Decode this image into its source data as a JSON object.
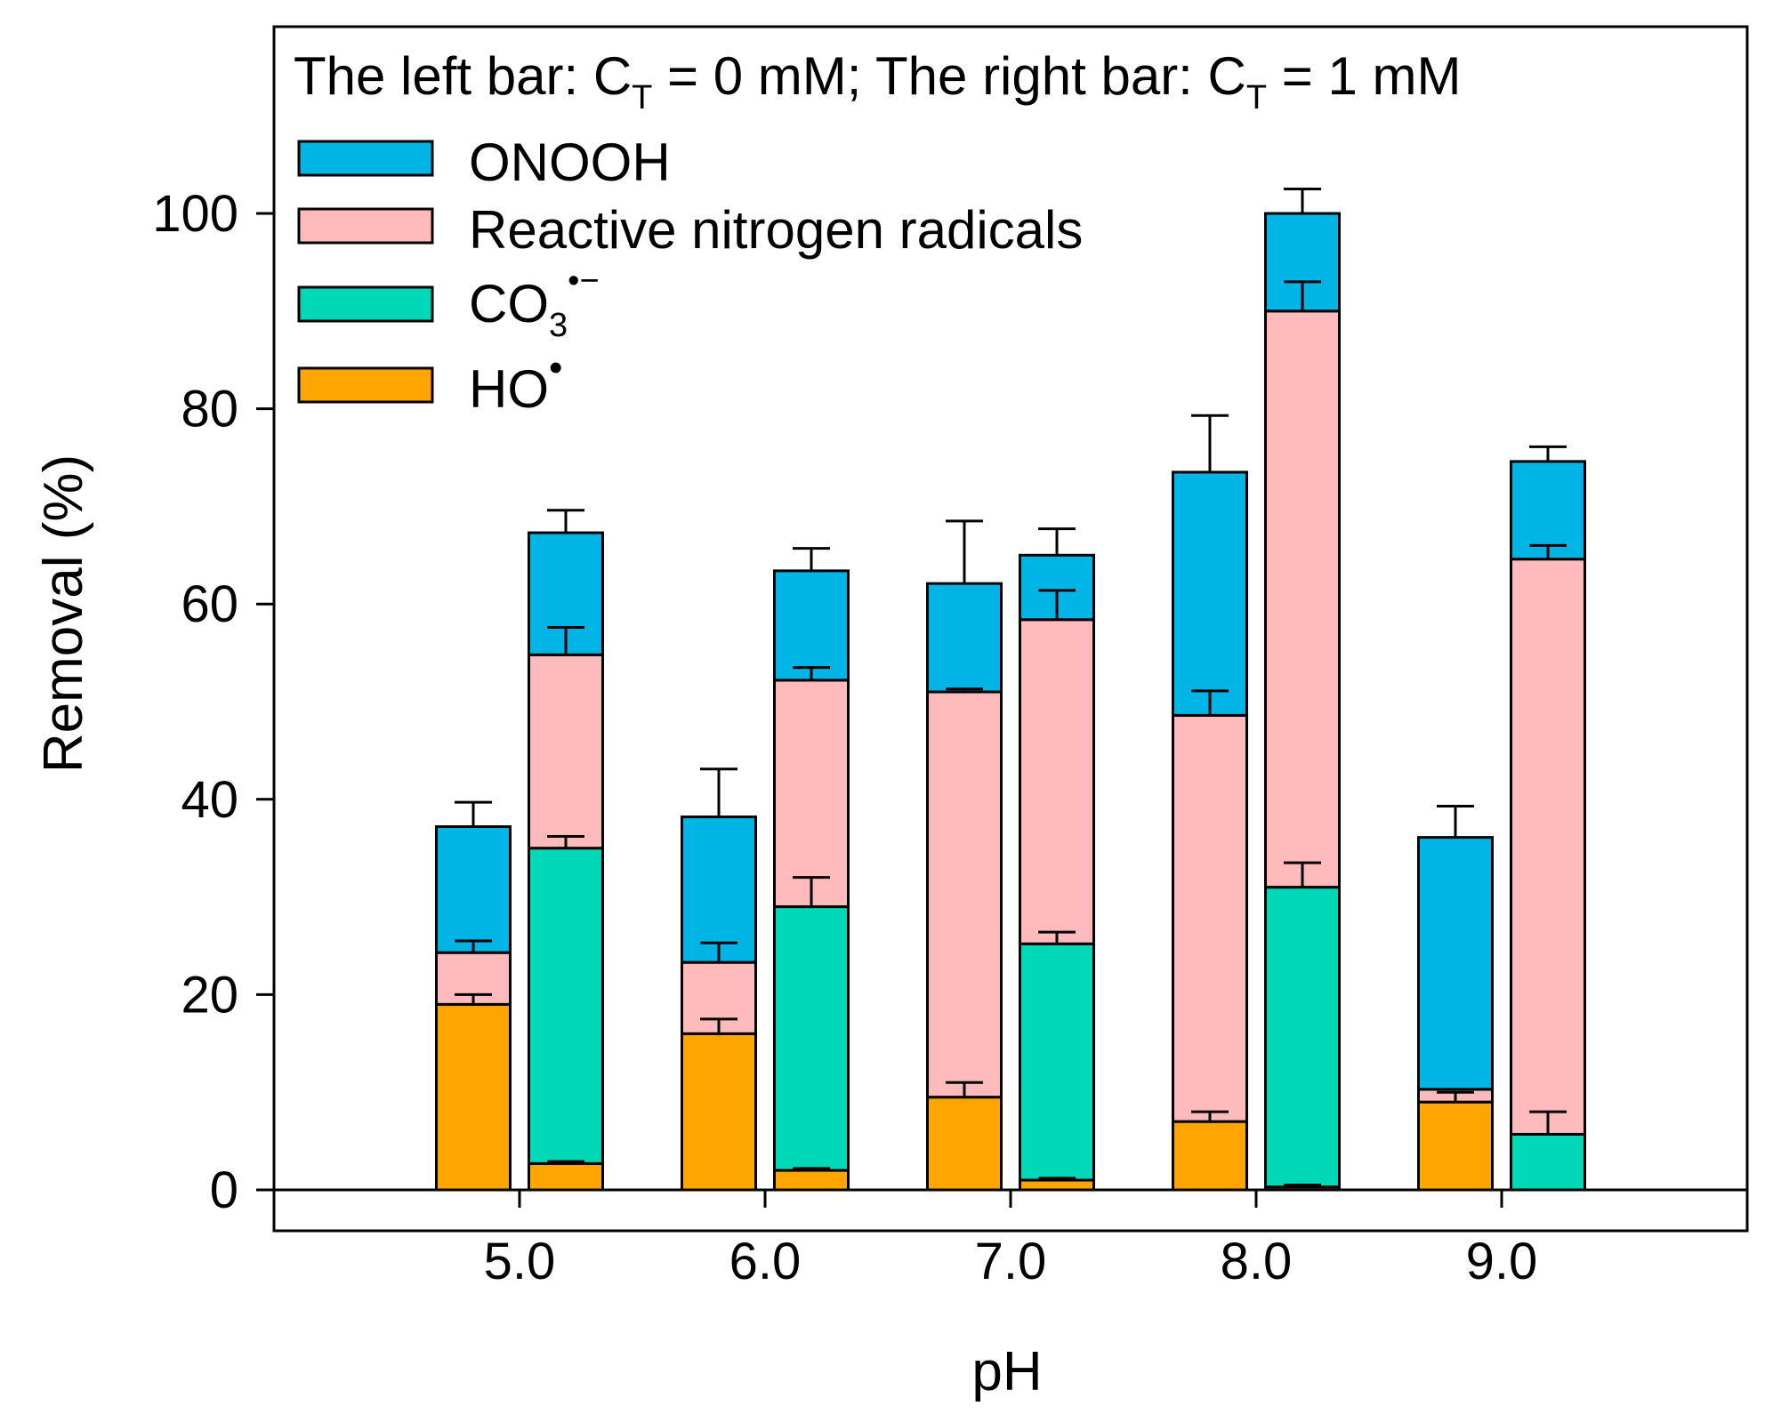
{
  "chart_data": {
    "type": "bar",
    "stacked": true,
    "title": "",
    "xlabel": "pH",
    "ylabel": "Removal (%)",
    "ylim": [
      0,
      120
    ],
    "yticks": [
      0,
      20,
      40,
      60,
      80,
      100
    ],
    "xlim": [
      4.0,
      10.0
    ],
    "categories": [
      "5.0",
      "6.0",
      "7.0",
      "8.0",
      "9.0"
    ],
    "category_values": [
      5.0,
      6.0,
      7.0,
      8.0,
      9.0
    ],
    "groups": [
      "The left bar: C_T = 0 mM",
      "The right bar: C_T = 1 mM"
    ],
    "legend": {
      "placement": "top-left",
      "header": {
        "part1": "The left bar: C",
        "sub1": "T",
        "part2": " = 0 mM; The right bar: C",
        "sub2": "T",
        "part3": " = 1 mM"
      },
      "entries": [
        {
          "key": "ONOOH",
          "label": "ONOOH"
        },
        {
          "key": "RNS",
          "label": "Reactive nitrogen radicals"
        },
        {
          "key": "CO3",
          "label": "CO",
          "sub": "3",
          "sup": "•−"
        },
        {
          "key": "HO",
          "label": "HO",
          "sup": "•"
        }
      ]
    },
    "series": [
      {
        "key": "HO",
        "name": "HO•",
        "color": "#FFA500",
        "left": [
          19.0,
          16.0,
          9.5,
          7.0,
          9.0
        ],
        "right": [
          2.7,
          2.0,
          1.0,
          0.3,
          0.0
        ],
        "left_err": [
          1.0,
          1.5,
          1.5,
          1.0,
          1.0
        ],
        "right_err": [
          0.2,
          0.2,
          0.2,
          0.2,
          0.0
        ]
      },
      {
        "key": "CO3",
        "name": "CO3•−",
        "color": "#00D8B8",
        "left": [
          0,
          0,
          0,
          0,
          0
        ],
        "right": [
          32.3,
          27.0,
          24.2,
          30.7,
          5.7
        ],
        "left_err": [
          0,
          0,
          0,
          0,
          0
        ],
        "right_err": [
          1.2,
          3.0,
          1.2,
          2.5,
          2.3
        ]
      },
      {
        "key": "RNS",
        "name": "Reactive nitrogen radicals",
        "color": "#FFBBBB",
        "left": [
          5.3,
          7.3,
          41.5,
          41.6,
          1.3
        ],
        "right": [
          19.8,
          23.2,
          33.2,
          59.0,
          58.9
        ],
        "left_err": [
          1.2,
          2.0,
          0.3,
          2.5,
          0.0
        ],
        "right_err": [
          2.8,
          1.3,
          3.0,
          3.0,
          1.4
        ]
      },
      {
        "key": "ONOOH",
        "name": "ONOOH",
        "color": "#00B5E6",
        "left": [
          12.9,
          14.9,
          11.1,
          24.9,
          25.8
        ],
        "right": [
          12.5,
          11.2,
          6.6,
          10.0,
          10.0
        ],
        "left_err": [
          2.5,
          4.9,
          6.4,
          5.8,
          3.2
        ],
        "right_err": [
          2.3,
          2.3,
          2.7,
          2.5,
          1.5
        ]
      }
    ]
  }
}
